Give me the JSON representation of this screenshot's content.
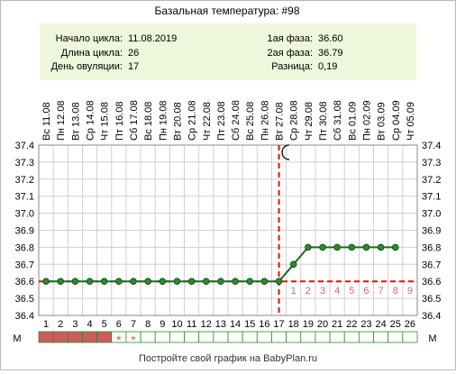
{
  "title": "Базальная температура: #98",
  "info": {
    "cycle_start_label": "Начало цикла:",
    "cycle_start": "11.08.2019",
    "cycle_length_label": "Длина цикла:",
    "cycle_length": "26",
    "ovulation_day_label": "День овуляции:",
    "ovulation_day": "17",
    "phase1_label": "1ая фаза:",
    "phase1": "36.60",
    "phase2_label": "2ая фаза:",
    "phase2": "36.79",
    "difference_label": "Разница:",
    "difference": "0,19"
  },
  "m_label": "М",
  "footer": "Постройте свой график на BabyPlan.ru",
  "colors": {
    "info_bg": "#eef6dc",
    "line": "#1e6b1e",
    "marker": "#2e8b2e",
    "accent_red": "#dd1111",
    "menstruation": "#cd5c5c",
    "grid": "#cfcfcf"
  },
  "chart_data": {
    "type": "line",
    "ylim": [
      36.4,
      37.4
    ],
    "y_ticks": [
      "36.4",
      "36.5",
      "36.6",
      "36.7",
      "36.8",
      "36.9",
      "37.0",
      "37.1",
      "37.2",
      "37.3",
      "37.4"
    ],
    "dates": [
      "Вс 11.08",
      "Пн 12.08",
      "Вт 13.08",
      "Ср 14.08",
      "Чт 15.08",
      "Пт 16.08",
      "Сб 17.08",
      "Вс 18.08",
      "Пн 19.08",
      "Вт 20.08",
      "Ср 21.08",
      "Чт 22.08",
      "Пт 23.08",
      "Сб 24.08",
      "Вс 25.08",
      "Пн 26.08",
      "Вт 27.08",
      "Ср 28.08",
      "Чт 29.08",
      "Пт 30.08",
      "Сб 31.08",
      "Вс 01.09",
      "Пн 02.09",
      "Вт 03.09",
      "Ср 04.09",
      "Чт 05.09"
    ],
    "days": [
      "1",
      "2",
      "3",
      "4",
      "5",
      "6",
      "7",
      "8",
      "9",
      "10",
      "11",
      "12",
      "13",
      "14",
      "15",
      "16",
      "17",
      "18",
      "19",
      "20",
      "21",
      "22",
      "23",
      "24",
      "25",
      "26"
    ],
    "temperatures": [
      36.6,
      36.6,
      36.6,
      36.6,
      36.6,
      36.6,
      36.6,
      36.6,
      36.6,
      36.6,
      36.6,
      36.6,
      36.6,
      36.6,
      36.6,
      36.6,
      36.6,
      36.7,
      36.8,
      36.8,
      36.8,
      36.8,
      36.8,
      36.8,
      36.8,
      null
    ],
    "coverline": 36.6,
    "ovulation_day": 17,
    "luteal_day_labels": [
      "1",
      "2",
      "3",
      "4",
      "5",
      "6",
      "7",
      "8",
      "9"
    ],
    "luteal_label_start_day": 18,
    "menstruation_days": [
      1,
      2,
      3,
      4,
      5
    ],
    "spotting_days": [
      6,
      7
    ],
    "spotting_symbol": "*",
    "grid": true
  }
}
